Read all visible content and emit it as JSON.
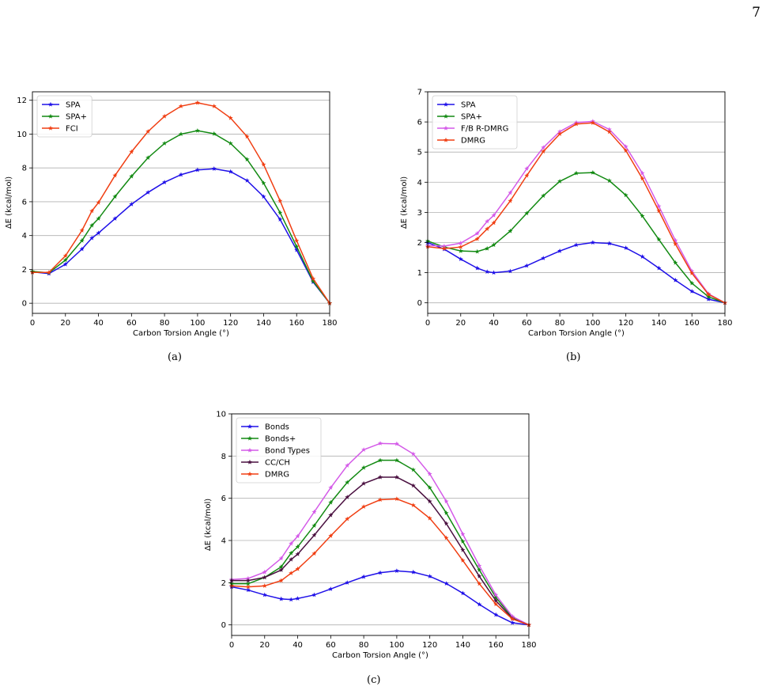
{
  "page_number": "7",
  "captions": [
    "(a)",
    "(b)",
    "(c)"
  ],
  "chart_data": [
    {
      "type": "line",
      "xlabel": "Carbon Torsion Angle (°)",
      "ylabel": "ΔE (kcal/mol)",
      "xlim": [
        0,
        180
      ],
      "ylim": [
        -0.6,
        12.5
      ],
      "xticks": [
        0,
        20,
        40,
        60,
        80,
        100,
        120,
        140,
        160,
        180
      ],
      "yticks": [
        0,
        2,
        4,
        6,
        8,
        10,
        12
      ],
      "grid": "horizontal",
      "legend_position": "top-left",
      "x": [
        0,
        10,
        20,
        30,
        36,
        40,
        50,
        60,
        70,
        80,
        90,
        100,
        110,
        120,
        130,
        140,
        150,
        160,
        170,
        180
      ],
      "series": [
        {
          "name": "SPA",
          "color": "#1f10e8",
          "values": [
            1.85,
            1.75,
            2.3,
            3.2,
            3.85,
            4.15,
            5.0,
            5.85,
            6.55,
            7.15,
            7.6,
            7.88,
            7.95,
            7.78,
            7.25,
            6.3,
            4.95,
            3.15,
            1.25,
            0.0
          ]
        },
        {
          "name": "SPA+",
          "color": "#128a12",
          "values": [
            1.88,
            1.8,
            2.55,
            3.7,
            4.6,
            5.0,
            6.3,
            7.5,
            8.6,
            9.45,
            10.0,
            10.2,
            10.02,
            9.45,
            8.5,
            7.1,
            5.35,
            3.35,
            1.3,
            0.0
          ]
        },
        {
          "name": "FCI",
          "color": "#f03e12",
          "values": [
            1.82,
            1.82,
            2.8,
            4.3,
            5.45,
            5.95,
            7.55,
            8.95,
            10.15,
            11.05,
            11.65,
            11.85,
            11.65,
            10.95,
            9.85,
            8.2,
            6.05,
            3.7,
            1.45,
            0.0
          ]
        }
      ]
    },
    {
      "type": "line",
      "xlabel": "Carbon Torsion Angle (°)",
      "ylabel": "ΔE (kcal/mol)",
      "xlim": [
        0,
        180
      ],
      "ylim": [
        -0.35,
        7.0
      ],
      "xticks": [
        0,
        20,
        40,
        60,
        80,
        100,
        120,
        140,
        160,
        180
      ],
      "yticks": [
        0,
        1,
        2,
        3,
        4,
        5,
        6,
        7
      ],
      "grid": "horizontal",
      "legend_position": "top-left",
      "x": [
        0,
        10,
        20,
        30,
        36,
        40,
        50,
        60,
        70,
        80,
        90,
        100,
        110,
        120,
        130,
        140,
        150,
        160,
        170,
        180
      ],
      "series": [
        {
          "name": "SPA",
          "color": "#1f10e8",
          "values": [
            2.0,
            1.78,
            1.45,
            1.15,
            1.03,
            1.0,
            1.05,
            1.23,
            1.48,
            1.72,
            1.92,
            2.0,
            1.97,
            1.82,
            1.53,
            1.15,
            0.75,
            0.38,
            0.12,
            0.0
          ]
        },
        {
          "name": "SPA+",
          "color": "#128a12",
          "values": [
            2.05,
            1.85,
            1.72,
            1.7,
            1.8,
            1.92,
            2.38,
            2.97,
            3.55,
            4.03,
            4.3,
            4.32,
            4.05,
            3.57,
            2.88,
            2.1,
            1.33,
            0.65,
            0.2,
            0.0
          ]
        },
        {
          "name": "F/B R-DMRG",
          "color": "#d45ae8",
          "values": [
            1.9,
            1.88,
            1.98,
            2.3,
            2.7,
            2.9,
            3.65,
            4.45,
            5.15,
            5.68,
            5.98,
            6.02,
            5.75,
            5.18,
            4.3,
            3.2,
            2.07,
            1.05,
            0.3,
            0.0
          ]
        },
        {
          "name": "DMRG",
          "color": "#f03e12",
          "values": [
            1.86,
            1.8,
            1.85,
            2.12,
            2.45,
            2.65,
            3.38,
            4.22,
            5.02,
            5.6,
            5.93,
            5.97,
            5.67,
            5.05,
            4.12,
            3.05,
            1.95,
            0.98,
            0.28,
            0.0
          ]
        }
      ]
    },
    {
      "type": "line",
      "xlabel": "Carbon Torsion Angle (°)",
      "ylabel": "ΔE (kcal/mol)",
      "xlim": [
        0,
        180
      ],
      "ylim": [
        -0.5,
        10.0
      ],
      "xticks": [
        0,
        20,
        40,
        60,
        80,
        100,
        120,
        140,
        160,
        180
      ],
      "yticks": [
        0,
        2,
        4,
        6,
        8,
        10
      ],
      "grid": "horizontal",
      "legend_position": "top-left",
      "x": [
        0,
        10,
        20,
        30,
        36,
        40,
        50,
        60,
        70,
        80,
        90,
        100,
        110,
        120,
        130,
        140,
        150,
        160,
        170,
        180
      ],
      "series": [
        {
          "name": "Bonds",
          "color": "#1f10e8",
          "values": [
            1.8,
            1.65,
            1.42,
            1.23,
            1.2,
            1.25,
            1.42,
            1.7,
            2.0,
            2.28,
            2.47,
            2.56,
            2.5,
            2.3,
            1.96,
            1.5,
            0.97,
            0.48,
            0.1,
            0.0
          ]
        },
        {
          "name": "Bonds+",
          "color": "#128a12",
          "values": [
            1.95,
            1.95,
            2.25,
            2.75,
            3.4,
            3.7,
            4.7,
            5.8,
            6.75,
            7.45,
            7.8,
            7.8,
            7.35,
            6.5,
            5.3,
            3.95,
            2.6,
            1.3,
            0.35,
            0.0
          ]
        },
        {
          "name": "Bond Types",
          "color": "#d45ae8",
          "values": [
            2.15,
            2.2,
            2.5,
            3.15,
            3.85,
            4.2,
            5.35,
            6.5,
            7.55,
            8.3,
            8.6,
            8.58,
            8.1,
            7.15,
            5.85,
            4.3,
            2.8,
            1.42,
            0.4,
            0.0
          ]
        },
        {
          "name": "CC/CH",
          "color": "#4a1040",
          "values": [
            2.1,
            2.1,
            2.25,
            2.6,
            3.1,
            3.35,
            4.25,
            5.2,
            6.05,
            6.7,
            7.0,
            7.0,
            6.6,
            5.85,
            4.8,
            3.55,
            2.3,
            1.15,
            0.3,
            0.0
          ]
        },
        {
          "name": "DMRG",
          "color": "#f03e12",
          "values": [
            1.85,
            1.8,
            1.85,
            2.1,
            2.45,
            2.65,
            3.38,
            4.22,
            5.02,
            5.6,
            5.93,
            5.97,
            5.67,
            5.05,
            4.12,
            3.05,
            1.95,
            0.98,
            0.28,
            0.0
          ]
        }
      ]
    }
  ]
}
